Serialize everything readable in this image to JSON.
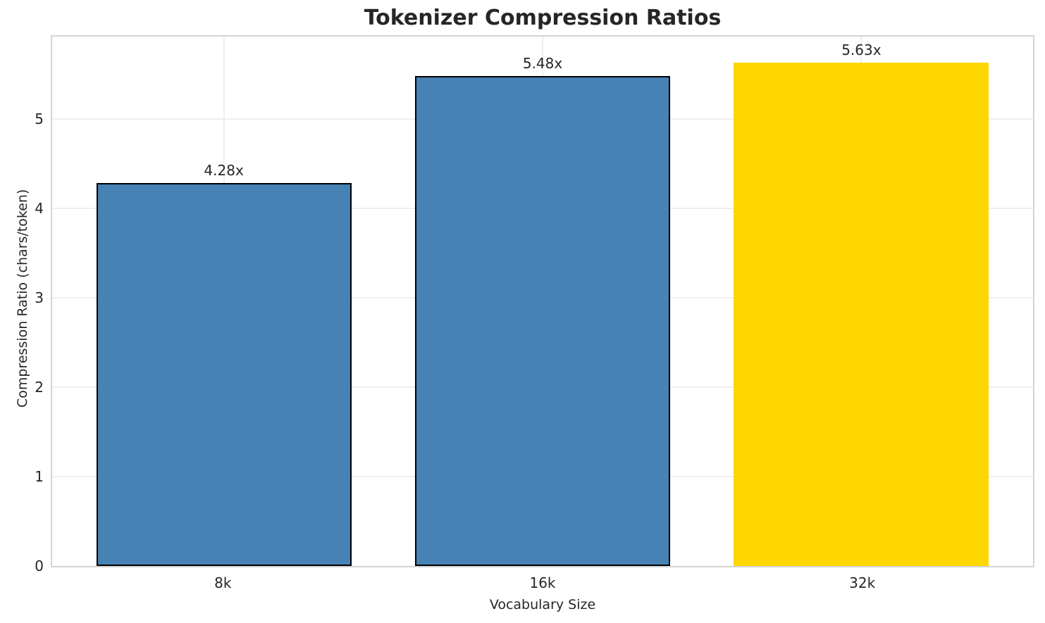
{
  "chart_data": {
    "type": "bar",
    "title": "Tokenizer Compression Ratios",
    "xlabel": "Vocabulary Size",
    "ylabel": "Compression Ratio (chars/token)",
    "categories": [
      "8k",
      "16k",
      "32k"
    ],
    "values": [
      4.28,
      5.48,
      5.63
    ],
    "bar_labels": [
      "4.28x",
      "5.48x",
      "5.63x"
    ],
    "yticks": [
      0,
      1,
      2,
      3,
      4,
      5
    ],
    "ylim": [
      0,
      5.95
    ],
    "grid": true,
    "legend": "none",
    "bar_fill_colors": [
      "#4682B4",
      "#4682B4",
      "#FFD700"
    ],
    "bar_edge_colors": [
      "#000000",
      "#000000",
      "none"
    ],
    "highlight_index": 2
  },
  "colors": {
    "background": "#ffffff",
    "spine": "#d4d4d4",
    "gridline": "#efefef",
    "text": "#262626",
    "bar_blue": "#4682B4",
    "bar_gold": "#FFD700",
    "bar_edge": "#000000"
  }
}
